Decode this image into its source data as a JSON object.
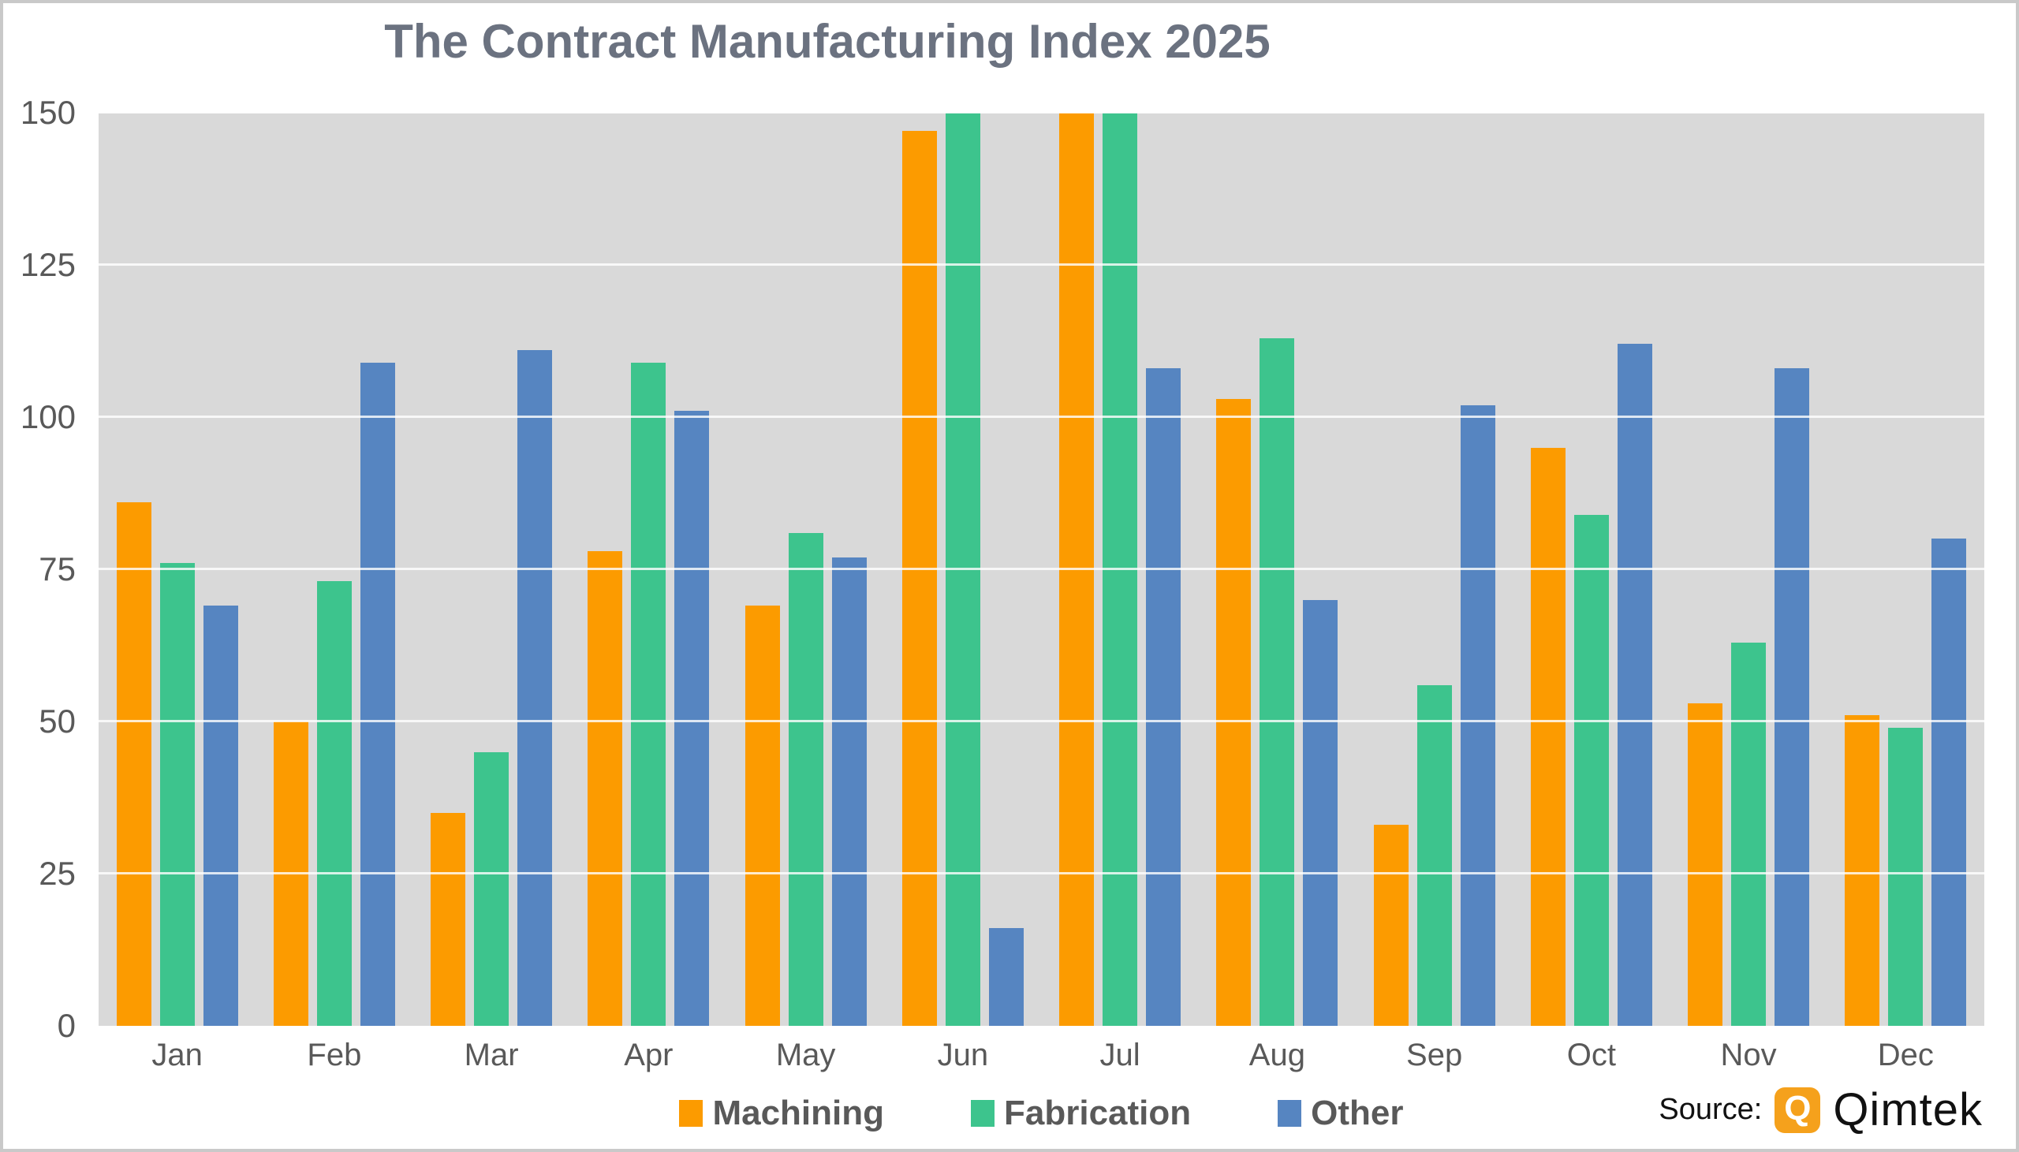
{
  "chart_data": {
    "type": "bar",
    "title": "The Contract Manufacturing Index 2025",
    "categories": [
      "Jan",
      "Feb",
      "Mar",
      "Apr",
      "May",
      "Jun",
      "Jul",
      "Aug",
      "Sep",
      "Oct",
      "Nov",
      "Dec"
    ],
    "series": [
      {
        "name": "Machining",
        "color": "#fc9b00",
        "values": [
          86,
          50,
          35,
          78,
          69,
          147,
          150,
          103,
          33,
          95,
          53,
          51
        ]
      },
      {
        "name": "Fabrication",
        "color": "#3dc48d",
        "values": [
          76,
          73,
          45,
          109,
          81,
          150,
          150,
          113,
          56,
          84,
          63,
          49
        ]
      },
      {
        "name": "Other",
        "color": "#5685c1",
        "values": [
          69,
          109,
          111,
          101,
          77,
          16,
          108,
          70,
          102,
          112,
          108,
          80
        ]
      }
    ],
    "xlabel": "",
    "ylabel": "",
    "ylim": [
      0,
      150
    ],
    "yticks": [
      0,
      25,
      50,
      75,
      100,
      125,
      150
    ],
    "grid": true,
    "legend_position": "bottom",
    "plot_background": "#d9d9d9",
    "title_color": "#6b7280",
    "axis_label_color": "#595959"
  },
  "source": {
    "label": "Source:",
    "brand": "Qimtek",
    "logo_icon": "qimtek-q-icon",
    "logo_letter": "Q",
    "logo_color": "#f5a11c"
  }
}
